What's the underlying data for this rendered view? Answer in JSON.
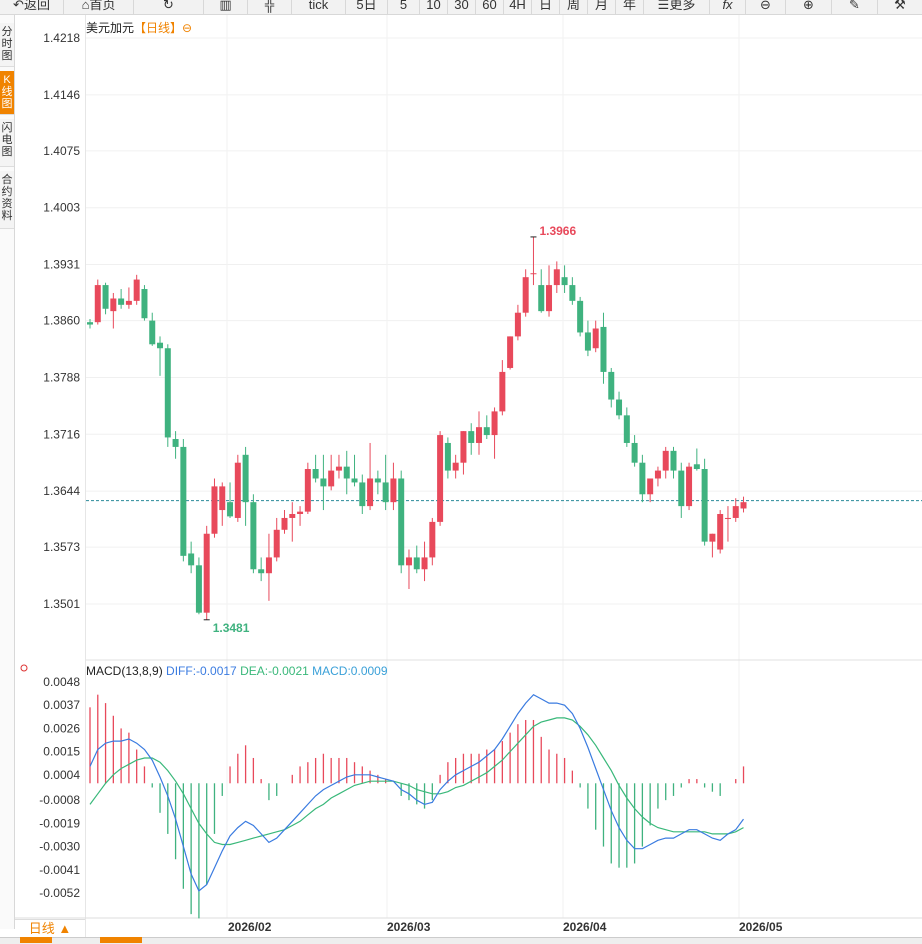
{
  "toolbar": {
    "back": "返回",
    "home": "首页",
    "tick": "tick",
    "periods": [
      "5日",
      "5",
      "10",
      "30",
      "60",
      "4H",
      "日",
      "周",
      "月",
      "年"
    ],
    "more": "更多",
    "fx": "fx"
  },
  "left_tabs": [
    "分时图",
    "K线图",
    "闪电图",
    "合约资料"
  ],
  "chart": {
    "symbol": "美元加元",
    "period_tag": "【日线】",
    "high_marker": "1.3966",
    "low_marker": "1.3481",
    "price_ticks": [
      "1.4218",
      "1.4146",
      "1.4075",
      "1.4003",
      "1.3931",
      "1.3860",
      "1.3788",
      "1.3716",
      "1.3644",
      "1.3573",
      "1.3501"
    ],
    "x_labels": [
      "2026/02",
      "2026/03",
      "2026/04",
      "2026/05"
    ],
    "period_select": "日线 ▲"
  },
  "macd": {
    "name": "MACD(13,8,9)",
    "diff_label": "DIFF:-0.0017",
    "dea_label": "DEA:-0.0021",
    "macd_label": "MACD:0.0009",
    "ticks": [
      "0.0048",
      "0.0037",
      "0.0026",
      "0.0015",
      "0.0004",
      "-0.0008",
      "-0.0019",
      "-0.0030",
      "-0.0041",
      "-0.0052"
    ]
  },
  "colors": {
    "up": "#e8495b",
    "down": "#3fb27f",
    "accent": "#f08300",
    "diff": "#3a7be0",
    "dea": "#39b87a"
  },
  "chart_data": {
    "type": "candlestick",
    "title": "美元加元【日线】",
    "ylim": [
      1.348,
      1.4218
    ],
    "last_price_line": 1.3632,
    "candles": [
      [
        1.3858,
        1.3862,
        1.385,
        1.3855
      ],
      [
        1.3858,
        1.3912,
        1.3855,
        1.3905
      ],
      [
        1.3905,
        1.3908,
        1.3868,
        1.3875
      ],
      [
        1.3872,
        1.3895,
        1.385,
        1.3888
      ],
      [
        1.3888,
        1.39,
        1.3875,
        1.388
      ],
      [
        1.388,
        1.3902,
        1.3875,
        1.3885
      ],
      [
        1.3885,
        1.3918,
        1.388,
        1.3912
      ],
      [
        1.39,
        1.3905,
        1.386,
        1.3863
      ],
      [
        1.386,
        1.387,
        1.3828,
        1.383
      ],
      [
        1.3832,
        1.384,
        1.379,
        1.3825
      ],
      [
        1.3825,
        1.383,
        1.37,
        1.3712
      ],
      [
        1.371,
        1.372,
        1.3685,
        1.37
      ],
      [
        1.37,
        1.371,
        1.3555,
        1.3562
      ],
      [
        1.3565,
        1.358,
        1.354,
        1.355
      ],
      [
        1.355,
        1.356,
        1.3488,
        1.349
      ],
      [
        1.349,
        1.36,
        1.3481,
        1.359
      ],
      [
        1.359,
        1.366,
        1.3585,
        1.365
      ],
      [
        1.362,
        1.3655,
        1.36,
        1.365
      ],
      [
        1.363,
        1.3655,
        1.361,
        1.3612
      ],
      [
        1.361,
        1.369,
        1.3605,
        1.368
      ],
      [
        1.369,
        1.37,
        1.36,
        1.363
      ],
      [
        1.363,
        1.364,
        1.354,
        1.3545
      ],
      [
        1.3545,
        1.356,
        1.353,
        1.354
      ],
      [
        1.354,
        1.359,
        1.3505,
        1.356
      ],
      [
        1.356,
        1.361,
        1.3555,
        1.3595
      ],
      [
        1.3595,
        1.362,
        1.359,
        1.361
      ],
      [
        1.361,
        1.363,
        1.358,
        1.3615
      ],
      [
        1.3615,
        1.3625,
        1.36,
        1.3618
      ],
      [
        1.3618,
        1.368,
        1.3615,
        1.3672
      ],
      [
        1.3672,
        1.369,
        1.3655,
        1.366
      ],
      [
        1.366,
        1.369,
        1.362,
        1.365
      ],
      [
        1.365,
        1.369,
        1.3645,
        1.367
      ],
      [
        1.367,
        1.369,
        1.366,
        1.3675
      ],
      [
        1.3675,
        1.3695,
        1.364,
        1.366
      ],
      [
        1.366,
        1.369,
        1.365,
        1.3655
      ],
      [
        1.3655,
        1.3665,
        1.3615,
        1.3625
      ],
      [
        1.3625,
        1.3705,
        1.362,
        1.366
      ],
      [
        1.366,
        1.367,
        1.364,
        1.3655
      ],
      [
        1.3655,
        1.369,
        1.362,
        1.363
      ],
      [
        1.363,
        1.368,
        1.362,
        1.366
      ],
      [
        1.366,
        1.367,
        1.354,
        1.355
      ],
      [
        1.355,
        1.357,
        1.352,
        1.356
      ],
      [
        1.356,
        1.3575,
        1.354,
        1.3545
      ],
      [
        1.3545,
        1.358,
        1.353,
        1.356
      ],
      [
        1.356,
        1.361,
        1.355,
        1.3605
      ],
      [
        1.3605,
        1.372,
        1.36,
        1.3715
      ],
      [
        1.3705,
        1.3712,
        1.366,
        1.367
      ],
      [
        1.367,
        1.369,
        1.366,
        1.368
      ],
      [
        1.368,
        1.372,
        1.3665,
        1.372
      ],
      [
        1.372,
        1.373,
        1.369,
        1.3705
      ],
      [
        1.3705,
        1.3745,
        1.369,
        1.3725
      ],
      [
        1.3725,
        1.374,
        1.371,
        1.3715
      ],
      [
        1.3715,
        1.375,
        1.3685,
        1.3745
      ],
      [
        1.3745,
        1.381,
        1.374,
        1.3795
      ],
      [
        1.38,
        1.384,
        1.3798,
        1.384
      ],
      [
        1.384,
        1.388,
        1.3835,
        1.387
      ],
      [
        1.387,
        1.3925,
        1.3865,
        1.3915
      ],
      [
        1.392,
        1.3966,
        1.3905,
        1.392
      ],
      [
        1.3905,
        1.3925,
        1.387,
        1.3872
      ],
      [
        1.3872,
        1.393,
        1.3865,
        1.3905
      ],
      [
        1.3905,
        1.3935,
        1.3895,
        1.3925
      ],
      [
        1.3915,
        1.393,
        1.3895,
        1.3905
      ],
      [
        1.3905,
        1.3915,
        1.388,
        1.3885
      ],
      [
        1.3885,
        1.389,
        1.384,
        1.3845
      ],
      [
        1.3845,
        1.386,
        1.3815,
        1.3822
      ],
      [
        1.3825,
        1.386,
        1.382,
        1.385
      ],
      [
        1.3852,
        1.387,
        1.378,
        1.3795
      ],
      [
        1.3795,
        1.38,
        1.375,
        1.376
      ],
      [
        1.376,
        1.377,
        1.3735,
        1.374
      ],
      [
        1.374,
        1.375,
        1.37,
        1.3705
      ],
      [
        1.3705,
        1.3715,
        1.3675,
        1.368
      ],
      [
        1.368,
        1.369,
        1.363,
        1.364
      ],
      [
        1.364,
        1.366,
        1.363,
        1.366
      ],
      [
        1.366,
        1.3675,
        1.365,
        1.367
      ],
      [
        1.367,
        1.37,
        1.366,
        1.3695
      ],
      [
        1.3695,
        1.37,
        1.366,
        1.367
      ],
      [
        1.367,
        1.368,
        1.361,
        1.3625
      ],
      [
        1.3625,
        1.368,
        1.362,
        1.3675
      ],
      [
        1.3678,
        1.3698,
        1.367,
        1.3672
      ],
      [
        1.3672,
        1.3685,
        1.3575,
        1.358
      ],
      [
        1.358,
        1.359,
        1.356,
        1.359
      ],
      [
        1.357,
        1.362,
        1.3565,
        1.3615
      ],
      [
        1.361,
        1.3625,
        1.358,
        1.361
      ],
      [
        1.361,
        1.3635,
        1.3605,
        1.3625
      ],
      [
        1.3622,
        1.3637,
        1.3617,
        1.363
      ]
    ],
    "macd_ylim": [
      -0.0063,
      0.0051
    ],
    "diff": [
      0.0008,
      0.0016,
      0.0019,
      0.002,
      0.002,
      0.0021,
      0.0019,
      0.0016,
      0.0011,
      0.0003,
      -0.0006,
      -0.0017,
      -0.003,
      -0.0043,
      -0.0051,
      -0.0048,
      -0.004,
      -0.0032,
      -0.0025,
      -0.0021,
      -0.0018,
      -0.002,
      -0.0024,
      -0.0028,
      -0.0026,
      -0.0022,
      -0.0018,
      -0.0014,
      -0.001,
      -0.0006,
      -0.0003,
      -0.0001,
      0.0001,
      0.0003,
      0.0004,
      0.0004,
      0.0004,
      0.0003,
      0.0002,
      0.0001,
      -0.0003,
      -0.0005,
      -0.0008,
      -0.001,
      -0.0009,
      -0.0003,
      0.0001,
      0.0004,
      0.0006,
      0.0008,
      0.001,
      0.0013,
      0.0016,
      0.0021,
      0.0027,
      0.0033,
      0.0038,
      0.0042,
      0.004,
      0.0038,
      0.0038,
      0.0037,
      0.0033,
      0.0026,
      0.0017,
      0.0007,
      -0.0003,
      -0.0013,
      -0.0021,
      -0.0027,
      -0.0031,
      -0.0031,
      -0.0029,
      -0.0027,
      -0.0026,
      -0.0026,
      -0.0024,
      -0.0022,
      -0.0022,
      -0.0024,
      -0.0026,
      -0.0027,
      -0.0024,
      -0.0022,
      -0.0017
    ],
    "dea": [
      -0.001,
      -0.0005,
      0.0,
      0.0004,
      0.0007,
      0.0009,
      0.0011,
      0.0012,
      0.0012,
      0.001,
      0.0006,
      0.0001,
      -0.0005,
      -0.0012,
      -0.0019,
      -0.0024,
      -0.0028,
      -0.0029,
      -0.0029,
      -0.0028,
      -0.0027,
      -0.0026,
      -0.0025,
      -0.0024,
      -0.0023,
      -0.0022,
      -0.002,
      -0.0018,
      -0.0015,
      -0.0012,
      -0.001,
      -0.0007,
      -0.0005,
      -0.0003,
      -0.0001,
      0.0,
      0.0001,
      0.0001,
      0.0001,
      0.0001,
      0.0,
      -0.0001,
      -0.0003,
      -0.0004,
      -0.0005,
      -0.0005,
      -0.0004,
      -0.0002,
      -0.0001,
      0.0001,
      0.0003,
      0.0005,
      0.0008,
      0.0011,
      0.0015,
      0.0019,
      0.0023,
      0.0027,
      0.0029,
      0.003,
      0.0031,
      0.0031,
      0.003,
      0.0027,
      0.0023,
      0.0018,
      0.0012,
      0.0006,
      -0.0001,
      -0.0007,
      -0.0012,
      -0.0016,
      -0.0019,
      -0.0021,
      -0.0022,
      -0.0023,
      -0.0023,
      -0.0023,
      -0.0023,
      -0.0023,
      -0.0024,
      -0.0024,
      -0.0024,
      -0.0023,
      -0.0021
    ]
  }
}
